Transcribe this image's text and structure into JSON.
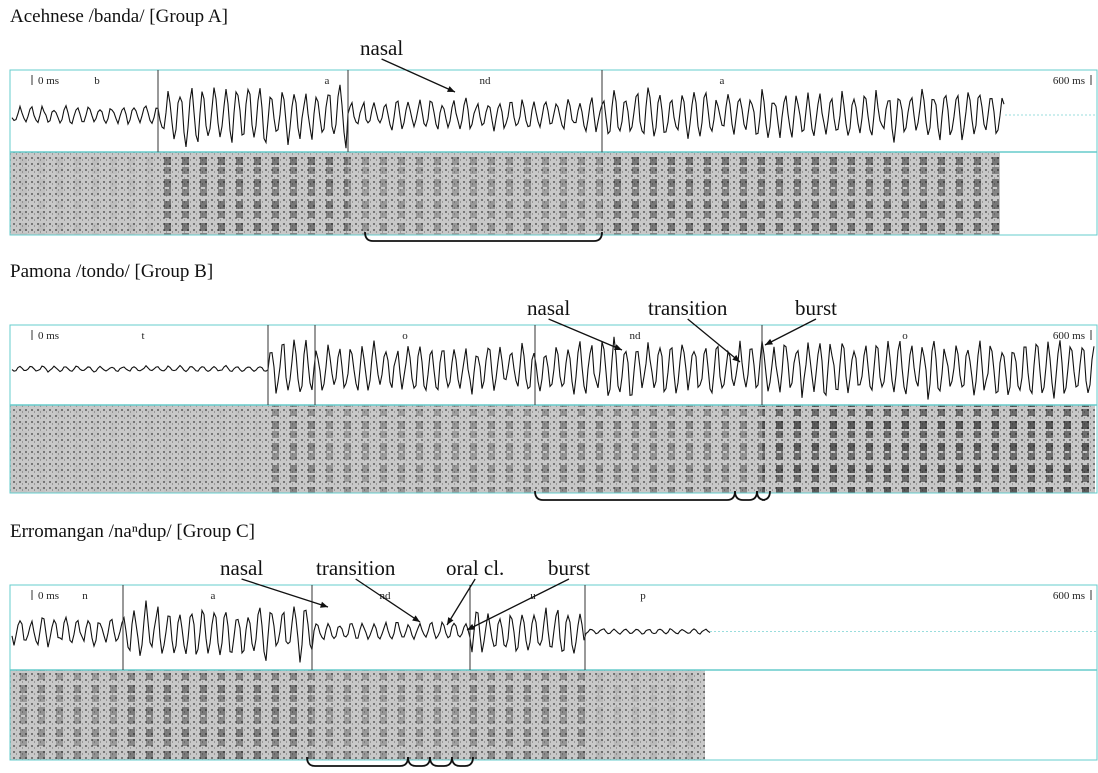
{
  "panels": [
    {
      "title": "Acehnese /banda/ [Group A]",
      "time_start": "0 ms",
      "time_end": "600 ms",
      "segments": [
        "b",
        "a",
        "nd",
        "a"
      ],
      "annotations": [
        "nasal"
      ]
    },
    {
      "title": "Pamona /tondo/ [Group B]",
      "time_start": "0 ms",
      "time_end": "600 ms",
      "segments": [
        "t",
        "o",
        "nd",
        "o"
      ],
      "annotations": [
        "nasal",
        "transition",
        "burst"
      ]
    },
    {
      "title": "Erromangan /naⁿdup/ [Group C]",
      "time_start": "0 ms",
      "time_end": "600 ms",
      "segments": [
        "n",
        "a",
        "nd",
        "u",
        "p"
      ],
      "annotations": [
        "nasal",
        "transition",
        "oral cl.",
        "burst"
      ]
    }
  ]
}
